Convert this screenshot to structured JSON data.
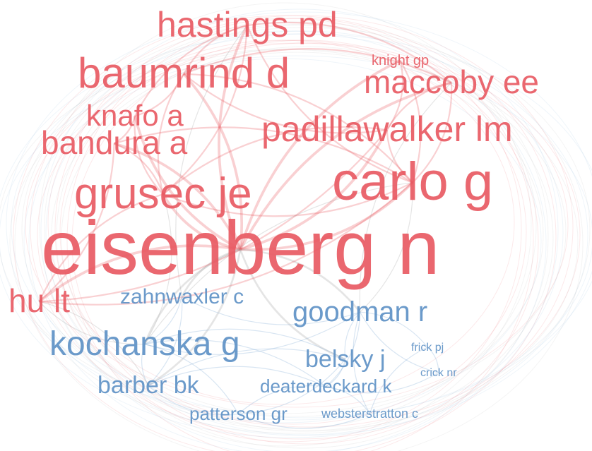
{
  "colors": {
    "cluster_red": "#e8565f",
    "cluster_blue": "#5b8fc4",
    "edge_red": "#e8565f",
    "edge_blue": "#86aed6",
    "edge_gray": "#a9a9a9",
    "background": "#ffffff"
  },
  "nodes": [
    {
      "id": "eisenberg",
      "label": "eisenberg n",
      "cluster": "red",
      "weight": 100
    },
    {
      "id": "carlo",
      "label": "carlo g",
      "cluster": "red",
      "weight": 52
    },
    {
      "id": "baumrind",
      "label": "baumrind d",
      "cluster": "red",
      "weight": 42
    },
    {
      "id": "grusec",
      "label": "grusec je",
      "cluster": "red",
      "weight": 42
    },
    {
      "id": "hastings",
      "label": "hastings pd",
      "cluster": "red",
      "weight": 33
    },
    {
      "id": "padillawalker",
      "label": "padillawalker lm",
      "cluster": "red",
      "weight": 33
    },
    {
      "id": "maccoby",
      "label": "maccoby ee",
      "cluster": "red",
      "weight": 30
    },
    {
      "id": "bandura",
      "label": "bandura a",
      "cluster": "red",
      "weight": 28
    },
    {
      "id": "knafo",
      "label": "knafo a",
      "cluster": "red",
      "weight": 25
    },
    {
      "id": "hult",
      "label": "hu lt",
      "cluster": "red",
      "weight": 30
    },
    {
      "id": "knight",
      "label": "knight gp",
      "cluster": "red",
      "weight": 12
    },
    {
      "id": "kochanska",
      "label": "kochanska g",
      "cluster": "blue",
      "weight": 33
    },
    {
      "id": "goodman",
      "label": "goodman r",
      "cluster": "blue",
      "weight": 26
    },
    {
      "id": "belsky",
      "label": "belsky j",
      "cluster": "blue",
      "weight": 21
    },
    {
      "id": "barber",
      "label": "barber bk",
      "cluster": "blue",
      "weight": 20
    },
    {
      "id": "zahnwaxler",
      "label": "zahnwaxler c",
      "cluster": "blue",
      "weight": 18
    },
    {
      "id": "deaterdeckard",
      "label": "deaterdeckard k",
      "cluster": "blue",
      "weight": 16
    },
    {
      "id": "patterson",
      "label": "patterson gr",
      "cluster": "blue",
      "weight": 16
    },
    {
      "id": "websterstratton",
      "label": "websterstratton c",
      "cluster": "blue",
      "weight": 11
    },
    {
      "id": "frick",
      "label": "frick pj",
      "cluster": "blue",
      "weight": 10
    },
    {
      "id": "crick",
      "label": "crick nr",
      "cluster": "blue",
      "weight": 10
    }
  ],
  "edges": [
    [
      "eisenberg",
      "carlo"
    ],
    [
      "eisenberg",
      "grusec"
    ],
    [
      "eisenberg",
      "baumrind"
    ],
    [
      "eisenberg",
      "hastings"
    ],
    [
      "eisenberg",
      "padillawalker"
    ],
    [
      "eisenberg",
      "maccoby"
    ],
    [
      "eisenberg",
      "bandura"
    ],
    [
      "eisenberg",
      "knafo"
    ],
    [
      "eisenberg",
      "hult"
    ],
    [
      "eisenberg",
      "knight"
    ],
    [
      "eisenberg",
      "kochanska"
    ],
    [
      "eisenberg",
      "goodman"
    ],
    [
      "eisenberg",
      "zahnwaxler"
    ],
    [
      "eisenberg",
      "barber"
    ],
    [
      "eisenberg",
      "belsky"
    ],
    [
      "carlo",
      "padillawalker"
    ],
    [
      "carlo",
      "knight"
    ],
    [
      "carlo",
      "grusec"
    ],
    [
      "carlo",
      "baumrind"
    ],
    [
      "carlo",
      "hastings"
    ],
    [
      "carlo",
      "maccoby"
    ],
    [
      "carlo",
      "hult"
    ],
    [
      "carlo",
      "bandura"
    ],
    [
      "baumrind",
      "maccoby"
    ],
    [
      "baumrind",
      "grusec"
    ],
    [
      "baumrind",
      "hastings"
    ],
    [
      "baumrind",
      "padillawalker"
    ],
    [
      "baumrind",
      "knafo"
    ],
    [
      "grusec",
      "hastings"
    ],
    [
      "grusec",
      "knafo"
    ],
    [
      "grusec",
      "bandura"
    ],
    [
      "grusec",
      "padillawalker"
    ],
    [
      "grusec",
      "hult"
    ],
    [
      "grusec",
      "kochanska"
    ],
    [
      "hastings",
      "knafo"
    ],
    [
      "hastings",
      "maccoby"
    ],
    [
      "hastings",
      "zahnwaxler"
    ],
    [
      "padillawalker",
      "maccoby"
    ],
    [
      "padillawalker",
      "knight"
    ],
    [
      "padillawalker",
      "hult"
    ],
    [
      "bandura",
      "knafo"
    ],
    [
      "bandura",
      "hult"
    ],
    [
      "kochanska",
      "goodman"
    ],
    [
      "kochanska",
      "belsky"
    ],
    [
      "kochanska",
      "barber"
    ],
    [
      "kochanska",
      "deaterdeckard"
    ],
    [
      "kochanska",
      "zahnwaxler"
    ],
    [
      "kochanska",
      "patterson"
    ],
    [
      "goodman",
      "belsky"
    ],
    [
      "goodman",
      "frick"
    ],
    [
      "goodman",
      "crick"
    ],
    [
      "goodman",
      "deaterdeckard"
    ],
    [
      "goodman",
      "websterstratton"
    ],
    [
      "belsky",
      "deaterdeckard"
    ],
    [
      "belsky",
      "barber"
    ],
    [
      "belsky",
      "patterson"
    ],
    [
      "barber",
      "patterson"
    ],
    [
      "barber",
      "deaterdeckard"
    ],
    [
      "deaterdeckard",
      "patterson"
    ],
    [
      "deaterdeckard",
      "websterstratton"
    ],
    [
      "patterson",
      "websterstratton"
    ],
    [
      "frick",
      "crick"
    ],
    [
      "frick",
      "websterstratton"
    ],
    [
      "crick",
      "deaterdeckard"
    ],
    [
      "zahnwaxler",
      "goodman"
    ],
    [
      "zahnwaxler",
      "barber"
    ],
    [
      "hult",
      "kochanska"
    ],
    [
      "hult",
      "barber"
    ],
    [
      "maccoby",
      "goodman"
    ],
    [
      "carlo",
      "goodman"
    ],
    [
      "carlo",
      "kochanska"
    ]
  ]
}
